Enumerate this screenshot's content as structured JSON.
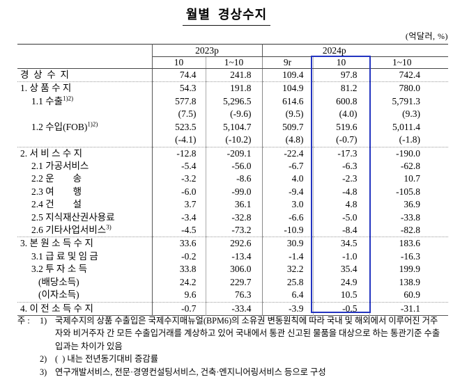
{
  "title": "월별  경상수지",
  "unit_note": "(억달러, %)",
  "colors": {
    "highlight_border": "#2334c0"
  },
  "table": {
    "col_groups": [
      {
        "label": "2023p",
        "span": 2
      },
      {
        "label": "2024p",
        "span": 3
      }
    ],
    "col_headers": [
      "10",
      "1~10",
      "9r",
      "10",
      "1~10"
    ],
    "highlighted_column": "2024p 10",
    "rows": [
      {
        "label": "경  상  수  지",
        "sup": "",
        "indent": 0,
        "sep": false,
        "values": [
          "74.4",
          "241.8",
          "109.4",
          "97.8",
          "742.4"
        ]
      },
      {
        "label": "1. 상 품 수 지",
        "sup": "",
        "indent": 0,
        "sep": true,
        "values": [
          "54.3",
          "191.8",
          "104.9",
          "81.2",
          "780.0"
        ]
      },
      {
        "label": "1.1 수출",
        "sup": "1)2)",
        "indent": 1,
        "sep": false,
        "values": [
          "577.8",
          "5,296.5",
          "614.6",
          "600.8",
          "5,791.3"
        ]
      },
      {
        "label": "",
        "sup": "",
        "indent": 1,
        "sep": false,
        "values": [
          "(7.5)",
          "(-9.6)",
          "(9.5)",
          "(4.0)",
          "(9.3)"
        ]
      },
      {
        "label": "1.2 수입(FOB)",
        "sup": "1)2)",
        "indent": 1,
        "sep": false,
        "values": [
          "523.5",
          "5,104.7",
          "509.7",
          "519.6",
          "5,011.4"
        ]
      },
      {
        "label": "",
        "sup": "",
        "indent": 1,
        "sep": false,
        "values": [
          "(-4.1)",
          "(-10.2)",
          "(4.8)",
          "(-0.7)",
          "(-1.8)"
        ]
      },
      {
        "label": "2. 서 비 스 수 지",
        "sup": "",
        "indent": 0,
        "sep": true,
        "values": [
          "-12.8",
          "-209.1",
          "-22.4",
          "-17.3",
          "-190.0"
        ]
      },
      {
        "label": "2.1 가공서비스",
        "sup": "",
        "indent": 1,
        "sep": false,
        "values": [
          "-5.4",
          "-56.0",
          "-6.7",
          "-6.3",
          "-62.8"
        ]
      },
      {
        "label": "2.2 운        송",
        "sup": "",
        "indent": 1,
        "sep": false,
        "values": [
          "-3.2",
          "-8.6",
          "4.0",
          "-2.3",
          "10.7"
        ]
      },
      {
        "label": "2.3 여        행",
        "sup": "",
        "indent": 1,
        "sep": false,
        "values": [
          "-6.0",
          "-99.0",
          "-9.4",
          "-4.8",
          "-105.8"
        ]
      },
      {
        "label": "2.4 건        설",
        "sup": "",
        "indent": 1,
        "sep": false,
        "values": [
          "3.7",
          "36.1",
          "3.0",
          "4.8",
          "36.9"
        ]
      },
      {
        "label": "2.5 지식재산권사용료",
        "sup": "",
        "indent": 1,
        "sep": false,
        "values": [
          "-3.4",
          "-32.8",
          "-6.6",
          "-5.0",
          "-33.8"
        ]
      },
      {
        "label": "2.6 기타사업서비스",
        "sup": "3)",
        "indent": 1,
        "sep": false,
        "values": [
          "-4.5",
          "-73.2",
          "-10.9",
          "-8.4",
          "-82.8"
        ]
      },
      {
        "label": "3. 본 원 소 득 수 지",
        "sup": "",
        "indent": 0,
        "sep": true,
        "values": [
          "33.6",
          "292.6",
          "30.9",
          "34.5",
          "183.6"
        ]
      },
      {
        "label": "3.1 급 료 및 임 금",
        "sup": "",
        "indent": 1,
        "sep": false,
        "values": [
          "-0.2",
          "-13.4",
          "-1.4",
          "-1.0",
          "-16.3"
        ]
      },
      {
        "label": "3.2 투 자 소 득",
        "sup": "",
        "indent": 1,
        "sep": false,
        "values": [
          "33.8",
          "306.0",
          "32.2",
          "35.4",
          "199.9"
        ]
      },
      {
        "label": "(배당소득)",
        "sup": "",
        "indent": 2,
        "sep": false,
        "values": [
          "24.2",
          "229.7",
          "25.8",
          "24.9",
          "138.9"
        ]
      },
      {
        "label": "(이자소득)",
        "sup": "",
        "indent": 2,
        "sep": false,
        "values": [
          "9.6",
          "76.3",
          "6.4",
          "10.5",
          "60.9"
        ]
      },
      {
        "label": "4. 이 전 소 득 수 지",
        "sup": "",
        "indent": 0,
        "sep": true,
        "values": [
          "-0.7",
          "-33.4",
          "-3.9",
          "-0.5",
          "-31.1"
        ]
      }
    ]
  },
  "footnotes": {
    "prefix": "주 :",
    "items": [
      {
        "num": "1)",
        "text": "국제수지의 상품 수출입은 국제수지매뉴얼(BPM6)의 소유권 변동원칙에 따라 국내 및 해외에서 이루어진 거주자와 비거주자 간 모든 수출입거래를 계상하고 있어 국내에서 통관 신고된 물품을 대상으로 하는 통관기준 수출입과는 차이가 있음"
      },
      {
        "num": "2)",
        "text": "(  ) 내는 전년동기대비 증감률"
      },
      {
        "num": "3)",
        "text": "연구개발서비스, 전문·경영컨설팅서비스, 건축·엔지니어링서비스 등으로 구성"
      }
    ]
  }
}
